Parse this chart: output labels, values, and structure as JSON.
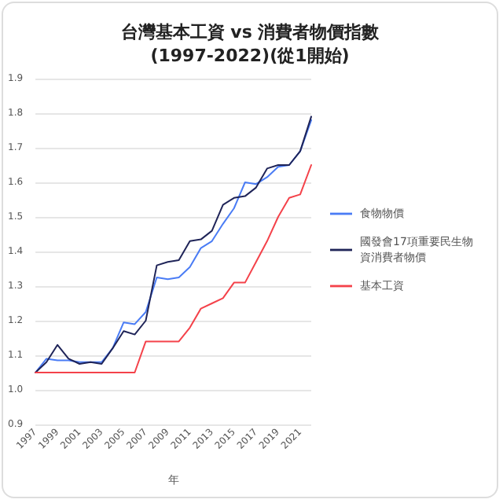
{
  "chart_data": {
    "type": "line",
    "title": "台灣基本工資 vs 消費者物價指數\n(1997-2022)(從1開始)",
    "xlabel": "年",
    "categories": [
      "1997",
      null,
      "1999",
      null,
      "2001",
      null,
      "2003",
      null,
      "2005",
      null,
      "2007",
      null,
      "2009",
      null,
      "2011",
      null,
      "2013",
      null,
      "2015",
      null,
      "2017",
      null,
      "2019",
      null,
      "2021",
      null
    ],
    "series": [
      {
        "name": "食物物價",
        "color": "#4a7cf5",
        "values": [
          1.05,
          1.09,
          1.085,
          1.085,
          1.08,
          1.08,
          1.08,
          1.12,
          1.195,
          1.19,
          1.225,
          1.325,
          1.32,
          1.325,
          1.355,
          1.41,
          1.43,
          1.48,
          1.525,
          1.6,
          1.595,
          1.615,
          1.645,
          1.65,
          1.69,
          1.78
        ]
      },
      {
        "name": "國發會17項重要民生物資消費者物價",
        "color": "#1f2458",
        "values": [
          1.05,
          1.08,
          1.13,
          1.09,
          1.075,
          1.08,
          1.075,
          1.12,
          1.17,
          1.16,
          1.2,
          1.36,
          1.37,
          1.375,
          1.43,
          1.435,
          1.46,
          1.535,
          1.555,
          1.56,
          1.585,
          1.64,
          1.65,
          1.65,
          1.69,
          1.79
        ]
      },
      {
        "name": "基本工資",
        "color": "#f4424a",
        "values": [
          1.05,
          1.05,
          1.05,
          1.05,
          1.05,
          1.05,
          1.05,
          1.05,
          1.05,
          1.05,
          1.14,
          1.14,
          1.14,
          1.14,
          1.18,
          1.235,
          1.25,
          1.265,
          1.31,
          1.31,
          1.37,
          1.43,
          1.5,
          1.555,
          1.565,
          1.65
        ]
      }
    ],
    "ylim": [
      0.9,
      1.9
    ],
    "yticks": [
      0.9,
      {
        "value": 1,
        "label": "1.0"
      },
      1.1,
      1.2,
      1.3,
      1.4,
      1.5,
      1.6,
      1.7,
      1.8,
      1.9
    ],
    "grid": "y",
    "legend": "right",
    "marker": "none",
    "line_style": "solid"
  }
}
